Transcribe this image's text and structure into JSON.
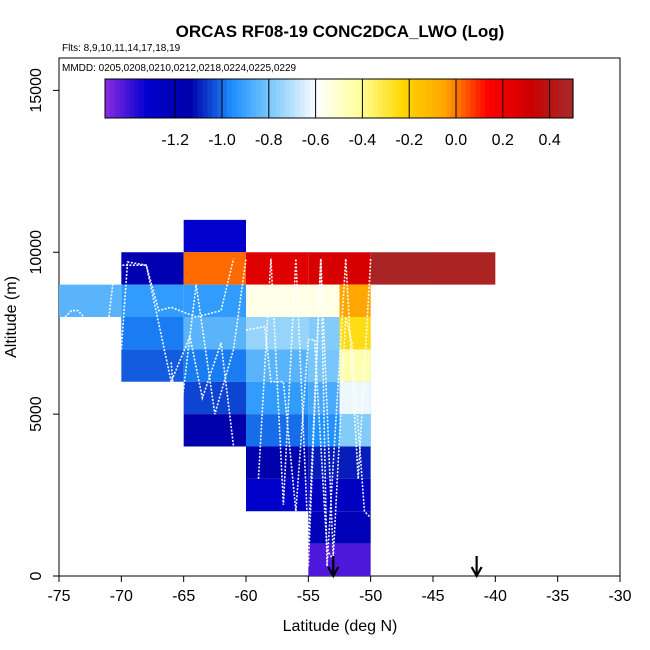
{
  "chart_data": {
    "type": "heatmap",
    "title": "ORCAS RF08-19 CONC2DCA_LWO (Log)",
    "flights_label": "Flts: 8,9,10,11,14,17,18,19",
    "mmdd_label": "MMDD: 0205,0208,0210,0212,0218,0224,0225,0229",
    "xlabel": "Latitude (deg N)",
    "ylabel": "Altitude (m)",
    "xlim": [
      -75,
      -30
    ],
    "ylim": [
      0,
      16000
    ],
    "x_ticks": [
      -75,
      -70,
      -65,
      -60,
      -55,
      -50,
      -45,
      -40,
      -35,
      -30
    ],
    "x_tick_labels": [
      "-75",
      "-70",
      "-65",
      "-60",
      "-55",
      "-50",
      "-45",
      "-40",
      "-35",
      "-30"
    ],
    "y_ticks": [
      0,
      5000,
      10000,
      15000
    ],
    "y_tick_labels": [
      "0",
      "5000",
      "10000",
      "15000"
    ],
    "colorbar": {
      "range": [
        -1.5,
        0.5
      ],
      "ticks": [
        -1.2,
        -1.0,
        -0.8,
        -0.6,
        -0.4,
        -0.2,
        0.0,
        0.2,
        0.4
      ],
      "tick_labels": [
        "-1.2",
        "-1.0",
        "-0.8",
        "-0.6",
        "-0.4",
        "-0.2",
        "0.0",
        "0.2",
        "0.4"
      ],
      "stops": [
        "#8a2be2",
        "#0000cd",
        "#0000aa",
        "#1e90ff",
        "#87cefa",
        "#ffffff",
        "#ffff99",
        "#ffd700",
        "#ffa500",
        "#ff0000",
        "#cc0000",
        "#a52a2a"
      ]
    },
    "cells": [
      {
        "lon": -75,
        "alt": 8000,
        "w": 5,
        "h": 1000,
        "value": -0.85
      },
      {
        "lon": -70,
        "alt": 9000,
        "w": 5,
        "h": 1000,
        "value": -1.18
      },
      {
        "lon": -70,
        "alt": 8000,
        "w": 5,
        "h": 1000,
        "value": -0.92
      },
      {
        "lon": -70,
        "alt": 7000,
        "w": 5,
        "h": 1000,
        "value": -0.98
      },
      {
        "lon": -70,
        "alt": 6000,
        "w": 5,
        "h": 1000,
        "value": -1.02
      },
      {
        "lon": -65,
        "alt": 10000,
        "w": 5,
        "h": 1000,
        "value": -1.32
      },
      {
        "lon": -65,
        "alt": 9000,
        "w": 5,
        "h": 1000,
        "value": 0.02
      },
      {
        "lon": -65,
        "alt": 8000,
        "w": 5,
        "h": 1000,
        "value": -0.92
      },
      {
        "lon": -65,
        "alt": 7000,
        "w": 5,
        "h": 1000,
        "value": -0.85
      },
      {
        "lon": -65,
        "alt": 6000,
        "w": 5,
        "h": 1000,
        "value": -0.98
      },
      {
        "lon": -65,
        "alt": 5000,
        "w": 5,
        "h": 1000,
        "value": -1.05
      },
      {
        "lon": -65,
        "alt": 4000,
        "w": 5,
        "h": 1000,
        "value": -1.15
      },
      {
        "lon": -60,
        "alt": 9000,
        "w": 5,
        "h": 1000,
        "value": 0.25
      },
      {
        "lon": -60,
        "alt": 8000,
        "w": 5,
        "h": 1000,
        "value": -0.55
      },
      {
        "lon": -60,
        "alt": 7000,
        "w": 5,
        "h": 1000,
        "value": -0.75
      },
      {
        "lon": -60,
        "alt": 6000,
        "w": 5,
        "h": 1000,
        "value": -0.85
      },
      {
        "lon": -60,
        "alt": 5000,
        "w": 5,
        "h": 1000,
        "value": -0.92
      },
      {
        "lon": -60,
        "alt": 4000,
        "w": 5,
        "h": 1000,
        "value": -1.0
      },
      {
        "lon": -60,
        "alt": 3000,
        "w": 5,
        "h": 1000,
        "value": -1.15
      },
      {
        "lon": -60,
        "alt": 2000,
        "w": 5,
        "h": 1000,
        "value": -1.3
      },
      {
        "lon": -55,
        "alt": 9000,
        "w": 5,
        "h": 1000,
        "value": 0.28
      },
      {
        "lon": -55,
        "alt": 8000,
        "w": 5,
        "h": 1000,
        "value": -0.55
      },
      {
        "lon": -55,
        "alt": 7000,
        "w": 5,
        "h": 1000,
        "value": -0.78
      },
      {
        "lon": -55,
        "alt": 6000,
        "w": 5,
        "h": 1000,
        "value": -0.8
      },
      {
        "lon": -55,
        "alt": 5000,
        "w": 5,
        "h": 1000,
        "value": -0.88
      },
      {
        "lon": -55,
        "alt": 4000,
        "w": 5,
        "h": 1000,
        "value": -0.95
      },
      {
        "lon": -55,
        "alt": 3000,
        "w": 5,
        "h": 1000,
        "value": -1.1
      },
      {
        "lon": -55,
        "alt": 2000,
        "w": 5,
        "h": 1000,
        "value": -1.25
      },
      {
        "lon": -55,
        "alt": 1000,
        "w": 5,
        "h": 1000,
        "value": -1.2
      },
      {
        "lon": -55,
        "alt": 0,
        "w": 5,
        "h": 1000,
        "value": -1.42
      },
      {
        "lon": -50,
        "alt": 9000,
        "w": 5,
        "h": 1000,
        "value": 0.48
      },
      {
        "lon": -45,
        "alt": 9000,
        "w": 5,
        "h": 1000,
        "value": 0.47
      }
    ],
    "subcells": [
      {
        "lon": -55,
        "alt": 8000,
        "w": 5,
        "h": 1000,
        "value": -0.05
      },
      {
        "lon": -55,
        "alt": 7000,
        "w": 5,
        "h": 1000,
        "value": -0.25
      },
      {
        "lon": -55,
        "alt": 6000,
        "w": 5,
        "h": 1000,
        "value": -0.45
      },
      {
        "lon": -55,
        "alt": 5000,
        "w": 5,
        "h": 1000,
        "value": -0.62
      },
      {
        "lon": -55,
        "alt": 4000,
        "w": 5,
        "h": 1000,
        "value": -0.78
      }
    ],
    "arrows": [
      -53,
      -41.5
    ]
  }
}
